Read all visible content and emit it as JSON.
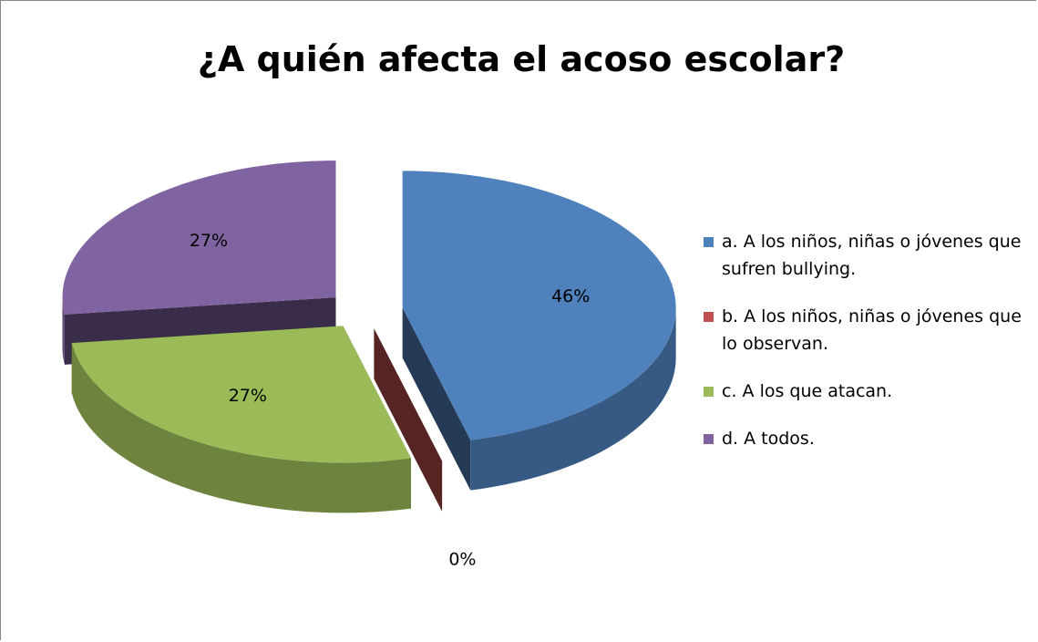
{
  "chart_data": {
    "type": "pie",
    "title": "¿A quién afecta el acoso escolar?",
    "categories": [
      "a. A los niños, niñas o jóvenes que sufren bullying.",
      "b. A los niños, niñas o jóvenes que lo observan.",
      "c. A los que atacan.",
      "d. A todos."
    ],
    "values": [
      46,
      0,
      27,
      27
    ],
    "value_labels": [
      "46%",
      "0%",
      "27%",
      "27%"
    ],
    "colors": [
      "#4f81bd",
      "#c0504d",
      "#9bbb59",
      "#8064a2"
    ],
    "legend": "right"
  }
}
